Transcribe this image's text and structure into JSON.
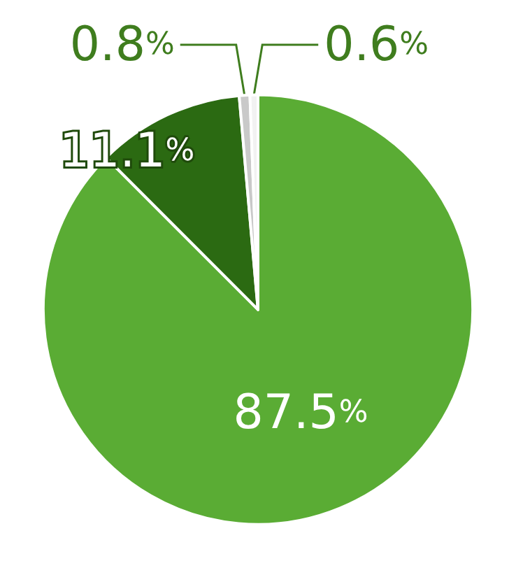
{
  "chart_data": {
    "type": "pie",
    "categories": [
      null,
      null,
      null,
      null
    ],
    "values": [
      87.5,
      11.1,
      0.8,
      0.6
    ],
    "colors": [
      "#5aac34",
      "#2b6a12",
      "#c9c9c9",
      "#f2f2f2"
    ],
    "value_labels": [
      "87.5%",
      "11.1%",
      "0.8%",
      "0.6%"
    ]
  }
}
